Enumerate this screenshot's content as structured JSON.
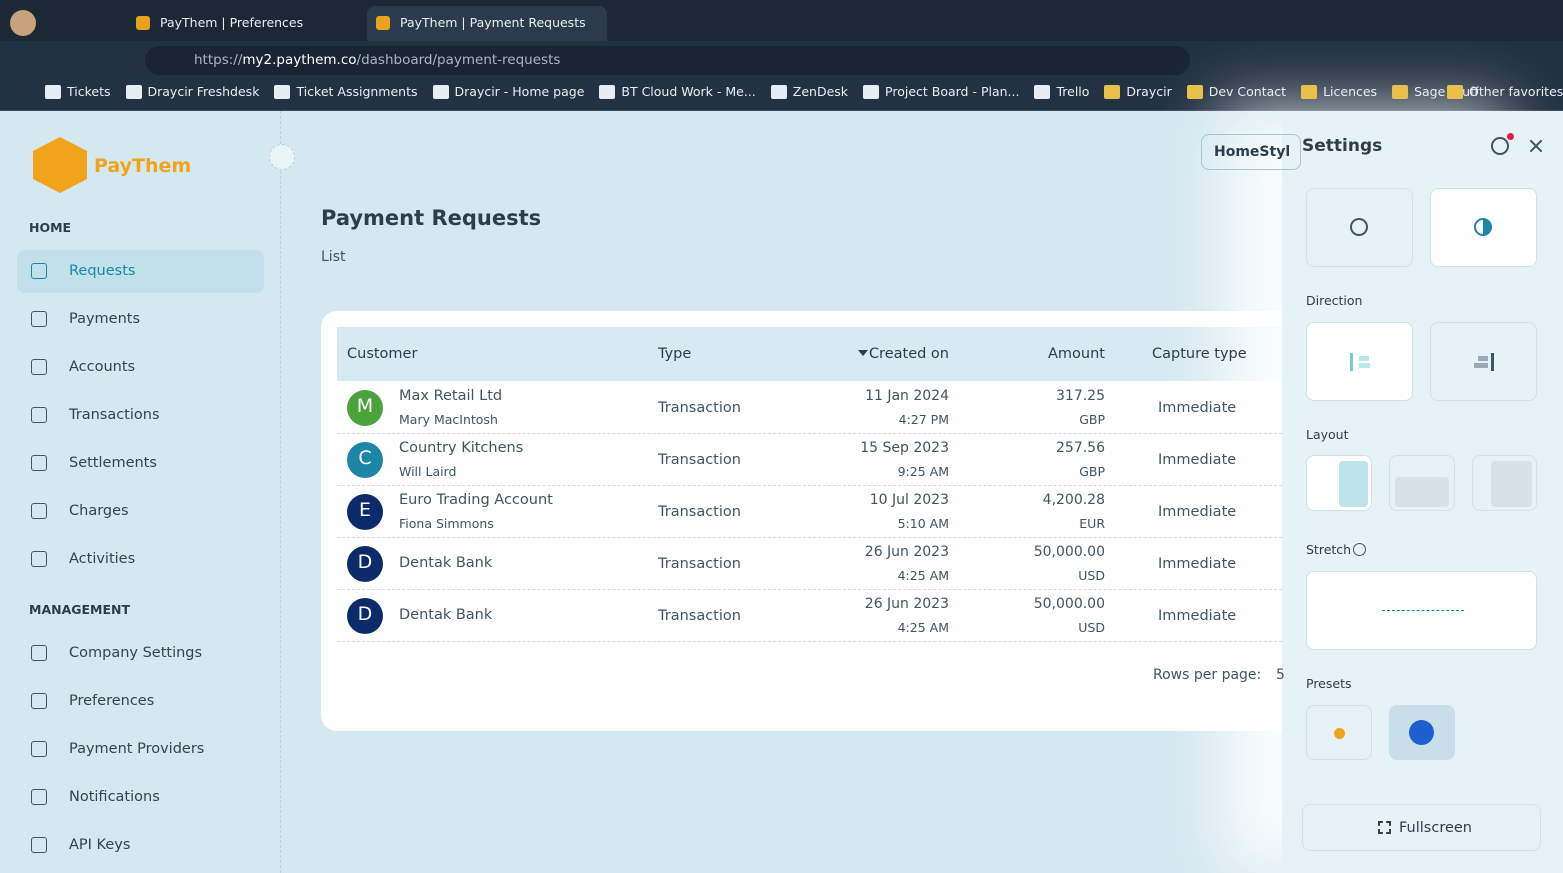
{
  "browser": {
    "tabs": [
      "PayThem | Preferences",
      "PayThem | Payment Requests"
    ],
    "url": {
      "scheme": "https://",
      "host": "my2.paythem.co",
      "path": "/dashboard/payment-requests"
    },
    "bookmarks": [
      "Tickets",
      "Draycir Freshdesk",
      "Ticket Assignments",
      "Draycir - Home page",
      "BT Cloud Work - Me...",
      "ZenDesk",
      "Project Board - Plan...",
      "Trello",
      "Draycir",
      "Dev Contact",
      "Licences",
      "Sage Stuff"
    ],
    "other_favorites": "Other favorites"
  },
  "sidebar": {
    "brand": "PayThem",
    "sections": [
      {
        "title": "HOME",
        "items": [
          "Requests",
          "Payments",
          "Accounts",
          "Transactions",
          "Settlements",
          "Charges",
          "Activities"
        ]
      },
      {
        "title": "MANAGEMENT",
        "items": [
          "Company Settings",
          "Preferences",
          "Payment Providers",
          "Notifications",
          "API Keys"
        ]
      }
    ]
  },
  "main": {
    "button": "HomeStyl",
    "title": "Payment Requests",
    "breadcrumb": "List",
    "table": {
      "headers": [
        "Customer",
        "Type",
        "Created on",
        "Amount",
        "Capture type"
      ],
      "rows": [
        {
          "initial": "M",
          "color": "#4aa23a",
          "name": "Max Retail Ltd",
          "contact": "Mary MacIntosh",
          "type": "Transaction",
          "date": "11 Jan 2024",
          "time": "4:27 PM",
          "amount": "317.25",
          "currency": "GBP",
          "capture": "Immediate"
        },
        {
          "initial": "C",
          "color": "#1b86a6",
          "name": "Country Kitchens",
          "contact": "Will Laird",
          "type": "Transaction",
          "date": "15 Sep 2023",
          "time": "9:25 AM",
          "amount": "257.56",
          "currency": "GBP",
          "capture": "Immediate"
        },
        {
          "initial": "E",
          "color": "#0d2a6b",
          "name": "Euro Trading Account",
          "contact": "Fiona Simmons",
          "type": "Transaction",
          "date": "10 Jul 2023",
          "time": "5:10 AM",
          "amount": "4,200.28",
          "currency": "EUR",
          "capture": "Immediate"
        },
        {
          "initial": "D",
          "color": "#0d2a6b",
          "name": "Dentak Bank",
          "type": "Transaction",
          "date": "26 Jun 2023",
          "time": "4:25 AM",
          "amount": "50,000.00",
          "currency": "USD",
          "capture": "Immediate"
        },
        {
          "initial": "D",
          "color": "#0d2a6b",
          "name": "Dentak Bank",
          "type": "Transaction",
          "date": "26 Jun 2023",
          "time": "4:25 AM",
          "amount": "50,000.00",
          "currency": "USD",
          "capture": "Immediate"
        }
      ]
    },
    "rows_per_page": "Rows per page:",
    "rows_per_page_value": "5"
  },
  "settings": {
    "title": "Settings",
    "direction": "Direction",
    "layout": "Layout",
    "stretch": "Stretch",
    "presets": "Presets",
    "fullscreen": "Fullscreen"
  }
}
